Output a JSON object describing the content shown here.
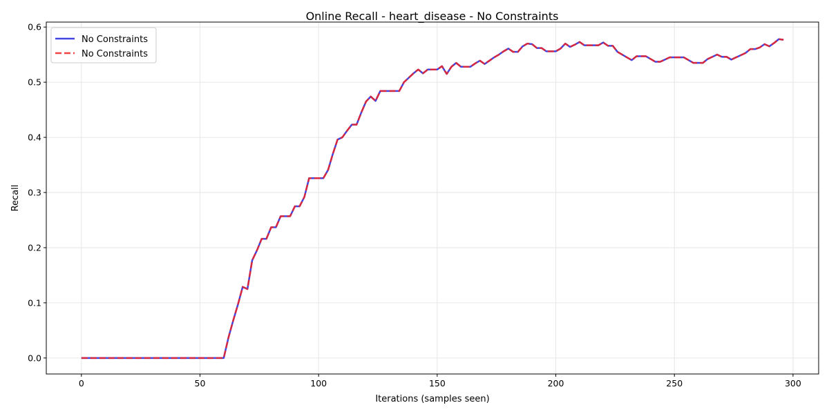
{
  "chart_data": {
    "type": "line",
    "title": "Online Recall - heart_disease - No Constraints",
    "xlabel": "Iterations (samples seen)",
    "ylabel": "Recall",
    "xlim": [
      -14.8,
      310.8
    ],
    "ylim": [
      -0.029,
      0.609
    ],
    "xticks": [
      0,
      50,
      100,
      150,
      200,
      250,
      300
    ],
    "xtick_labels": [
      "0",
      "50",
      "100",
      "150",
      "200",
      "250",
      "300"
    ],
    "yticks": [
      0.0,
      0.1,
      0.2,
      0.3,
      0.4,
      0.5,
      0.6
    ],
    "ytick_labels": [
      "0.0",
      "0.1",
      "0.2",
      "0.3",
      "0.4",
      "0.5",
      "0.6"
    ],
    "grid": true,
    "legend_position": "top-left",
    "x": [
      0,
      2,
      4,
      6,
      8,
      10,
      12,
      14,
      16,
      18,
      20,
      22,
      24,
      26,
      28,
      30,
      32,
      34,
      36,
      38,
      40,
      42,
      44,
      46,
      48,
      50,
      52,
      54,
      56,
      58,
      60,
      62,
      64,
      66,
      68,
      70,
      72,
      74,
      76,
      78,
      80,
      82,
      84,
      86,
      88,
      90,
      92,
      94,
      96,
      98,
      100,
      102,
      104,
      106,
      108,
      110,
      112,
      114,
      116,
      118,
      120,
      122,
      124,
      126,
      128,
      130,
      132,
      134,
      136,
      138,
      140,
      142,
      144,
      146,
      148,
      150,
      152,
      154,
      156,
      158,
      160,
      162,
      164,
      166,
      168,
      170,
      172,
      174,
      176,
      178,
      180,
      182,
      184,
      186,
      188,
      190,
      192,
      194,
      196,
      198,
      200,
      202,
      204,
      206,
      208,
      210,
      212,
      214,
      216,
      218,
      220,
      222,
      224,
      226,
      228,
      230,
      232,
      234,
      236,
      238,
      240,
      242,
      244,
      246,
      248,
      250,
      252,
      254,
      256,
      258,
      260,
      262,
      264,
      266,
      268,
      270,
      272,
      274,
      276,
      278,
      280,
      282,
      284,
      286,
      288,
      290,
      292,
      294,
      296
    ],
    "series": [
      {
        "name": "No Constraints",
        "color": "#2222dd",
        "style": "solid",
        "values": [
          0.0,
          0.0,
          0.0,
          0.0,
          0.0,
          0.0,
          0.0,
          0.0,
          0.0,
          0.0,
          0.0,
          0.0,
          0.0,
          0.0,
          0.0,
          0.0,
          0.0,
          0.0,
          0.0,
          0.0,
          0.0,
          0.0,
          0.0,
          0.0,
          0.0,
          0.0,
          0.0,
          0.0,
          0.0,
          0.0,
          0.0,
          0.037,
          0.068,
          0.097,
          0.129,
          0.125,
          0.177,
          0.195,
          0.216,
          0.216,
          0.237,
          0.237,
          0.257,
          0.257,
          0.257,
          0.275,
          0.275,
          0.292,
          0.326,
          0.326,
          0.326,
          0.326,
          0.341,
          0.37,
          0.396,
          0.4,
          0.412,
          0.423,
          0.423,
          0.445,
          0.465,
          0.474,
          0.466,
          0.484,
          0.484,
          0.484,
          0.484,
          0.484,
          0.5,
          0.508,
          0.516,
          0.523,
          0.516,
          0.523,
          0.523,
          0.523,
          0.529,
          0.515,
          0.528,
          0.535,
          0.528,
          0.528,
          0.528,
          0.534,
          0.539,
          0.533,
          0.539,
          0.545,
          0.55,
          0.556,
          0.561,
          0.555,
          0.555,
          0.565,
          0.57,
          0.569,
          0.562,
          0.562,
          0.556,
          0.556,
          0.556,
          0.561,
          0.57,
          0.564,
          0.568,
          0.573,
          0.567,
          0.567,
          0.567,
          0.567,
          0.572,
          0.566,
          0.566,
          0.555,
          0.55,
          0.545,
          0.54,
          0.547,
          0.547,
          0.547,
          0.542,
          0.537,
          0.537,
          0.541,
          0.545,
          0.545,
          0.545,
          0.545,
          0.54,
          0.535,
          0.535,
          0.535,
          0.542,
          0.546,
          0.55,
          0.546,
          0.546,
          0.541,
          0.545,
          0.549,
          0.553,
          0.56,
          0.56,
          0.563,
          0.569,
          0.565,
          0.571,
          0.578,
          0.577
        ]
      },
      {
        "name": "No Constraints",
        "color": "#ee2222",
        "style": "dashed",
        "values": [
          0.0,
          0.0,
          0.0,
          0.0,
          0.0,
          0.0,
          0.0,
          0.0,
          0.0,
          0.0,
          0.0,
          0.0,
          0.0,
          0.0,
          0.0,
          0.0,
          0.0,
          0.0,
          0.0,
          0.0,
          0.0,
          0.0,
          0.0,
          0.0,
          0.0,
          0.0,
          0.0,
          0.0,
          0.0,
          0.0,
          0.0,
          0.037,
          0.068,
          0.097,
          0.129,
          0.125,
          0.177,
          0.195,
          0.216,
          0.216,
          0.237,
          0.237,
          0.257,
          0.257,
          0.257,
          0.275,
          0.275,
          0.292,
          0.326,
          0.326,
          0.326,
          0.326,
          0.341,
          0.37,
          0.396,
          0.4,
          0.412,
          0.423,
          0.423,
          0.445,
          0.465,
          0.474,
          0.466,
          0.484,
          0.484,
          0.484,
          0.484,
          0.484,
          0.5,
          0.508,
          0.516,
          0.523,
          0.516,
          0.523,
          0.523,
          0.523,
          0.529,
          0.515,
          0.528,
          0.535,
          0.528,
          0.528,
          0.528,
          0.534,
          0.539,
          0.533,
          0.539,
          0.545,
          0.55,
          0.556,
          0.561,
          0.555,
          0.555,
          0.565,
          0.57,
          0.569,
          0.562,
          0.562,
          0.556,
          0.556,
          0.556,
          0.561,
          0.57,
          0.564,
          0.568,
          0.573,
          0.567,
          0.567,
          0.567,
          0.567,
          0.572,
          0.566,
          0.566,
          0.555,
          0.55,
          0.545,
          0.54,
          0.547,
          0.547,
          0.547,
          0.542,
          0.537,
          0.537,
          0.541,
          0.545,
          0.545,
          0.545,
          0.545,
          0.54,
          0.535,
          0.535,
          0.535,
          0.542,
          0.546,
          0.55,
          0.546,
          0.546,
          0.541,
          0.545,
          0.549,
          0.553,
          0.56,
          0.56,
          0.563,
          0.569,
          0.565,
          0.571,
          0.578,
          0.577
        ]
      }
    ]
  }
}
